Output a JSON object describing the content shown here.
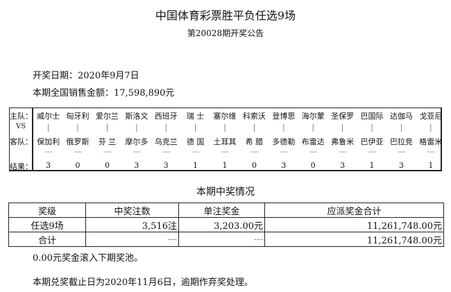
{
  "title": "中国体育彩票胜平负任选9场",
  "subtitle": "第20028期开奖公告",
  "draw_date": "开奖日期：2020年9月7日",
  "sales": "本期全国销售金额：17,598,890元",
  "match_labels": {
    "home": "主队：",
    "vs": "VS",
    "away": "客队：",
    "result": "结果："
  },
  "matches": [
    {
      "home": "威尔士",
      "away": "保加利",
      "result": "3"
    },
    {
      "home": "匈牙利",
      "away": "俄罗斯",
      "result": "0"
    },
    {
      "home": "爱尔兰",
      "away": "芬 兰",
      "result": "0"
    },
    {
      "home": "斯洛文",
      "away": "摩尔多",
      "result": "3"
    },
    {
      "home": "西班牙",
      "away": "乌克兰",
      "result": "3"
    },
    {
      "home": "瑞 士",
      "away": "德 国",
      "result": "1"
    },
    {
      "home": "塞尔维",
      "away": "土耳其",
      "result": "1"
    },
    {
      "home": "科索沃",
      "away": "希 腊",
      "result": "0"
    },
    {
      "home": "登博思",
      "away": "多德勒",
      "result": "3"
    },
    {
      "home": "海尔蒙",
      "away": "布雷达",
      "result": "0"
    },
    {
      "home": "圣保罗",
      "away": "弗鲁米",
      "result": "3"
    },
    {
      "home": "巴国际",
      "away": "巴伊亚",
      "result": "1"
    },
    {
      "home": "达伽马",
      "away": "巴拉竞",
      "result": "3"
    },
    {
      "home": "戈亚尼",
      "away": "格雷米",
      "result": "1"
    }
  ],
  "vs_mark": "|",
  "dash_mark": "----",
  "section_title": "本期中奖情况",
  "prize_table": {
    "headers": [
      "奖级",
      "中奖注数",
      "单注奖金",
      "应派奖金合计"
    ],
    "rows": [
      [
        "任选9场",
        "3,516注",
        "3,203.00元",
        "11,261,748.00元"
      ],
      [
        "合计",
        "---",
        "---",
        "11,261,748.00元"
      ]
    ]
  },
  "rollover": "0.00元奖金滚入下期奖池。",
  "deadline": "本期兑奖截止日为2020年11月6日，逾期作弃奖处理。"
}
